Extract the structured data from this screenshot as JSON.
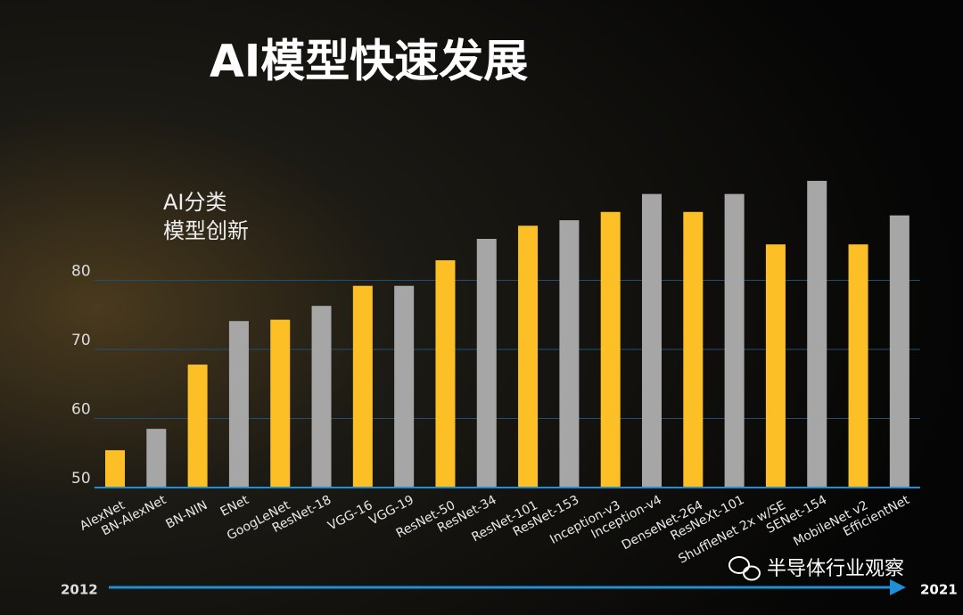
{
  "chart_data": {
    "type": "bar",
    "title": "AI模型快速发展",
    "y_label": [
      "AI分类",
      "模型创新"
    ],
    "categories": [
      "AlexNet",
      "BN-AlexNet",
      "BN-NIN",
      "ENet",
      "GoogLeNet",
      "ResNet-18",
      "VGG-16",
      "VGG-19",
      "ResNet-50",
      "ResNet-34",
      "ResNet-101",
      "ResNet-153",
      "Inception-v3",
      "Inception-v4",
      "DenseNet-264",
      "ResNeXt-101",
      "ShuffleNet 2x w/SE",
      "SENet-154",
      "MobileNet v2",
      "EfficientNet"
    ],
    "values": [
      55.4,
      58.5,
      67.8,
      74.1,
      74.3,
      76.3,
      79.2,
      79.2,
      82.9,
      86.0,
      87.9,
      88.7,
      89.9,
      92.5,
      89.9,
      92.5,
      85.2,
      94.4,
      85.2,
      89.4
    ],
    "colors": [
      "#fcbf26",
      "#a6a6a6",
      "#fcbf26",
      "#a6a6a6",
      "#fcbf26",
      "#a6a6a6",
      "#fcbf26",
      "#a6a6a6",
      "#fcbf26",
      "#a6a6a6",
      "#fcbf26",
      "#a6a6a6",
      "#fcbf26",
      "#a6a6a6",
      "#fcbf26",
      "#a6a6a6",
      "#fcbf26",
      "#a6a6a6",
      "#fcbf26",
      "#a6a6a6"
    ],
    "ylim": [
      50,
      100
    ],
    "yticks": [
      50,
      60,
      70,
      80
    ],
    "grid": true,
    "timeline": {
      "start": "2012",
      "end": "2021"
    },
    "watermark": "半导体行业观察"
  }
}
